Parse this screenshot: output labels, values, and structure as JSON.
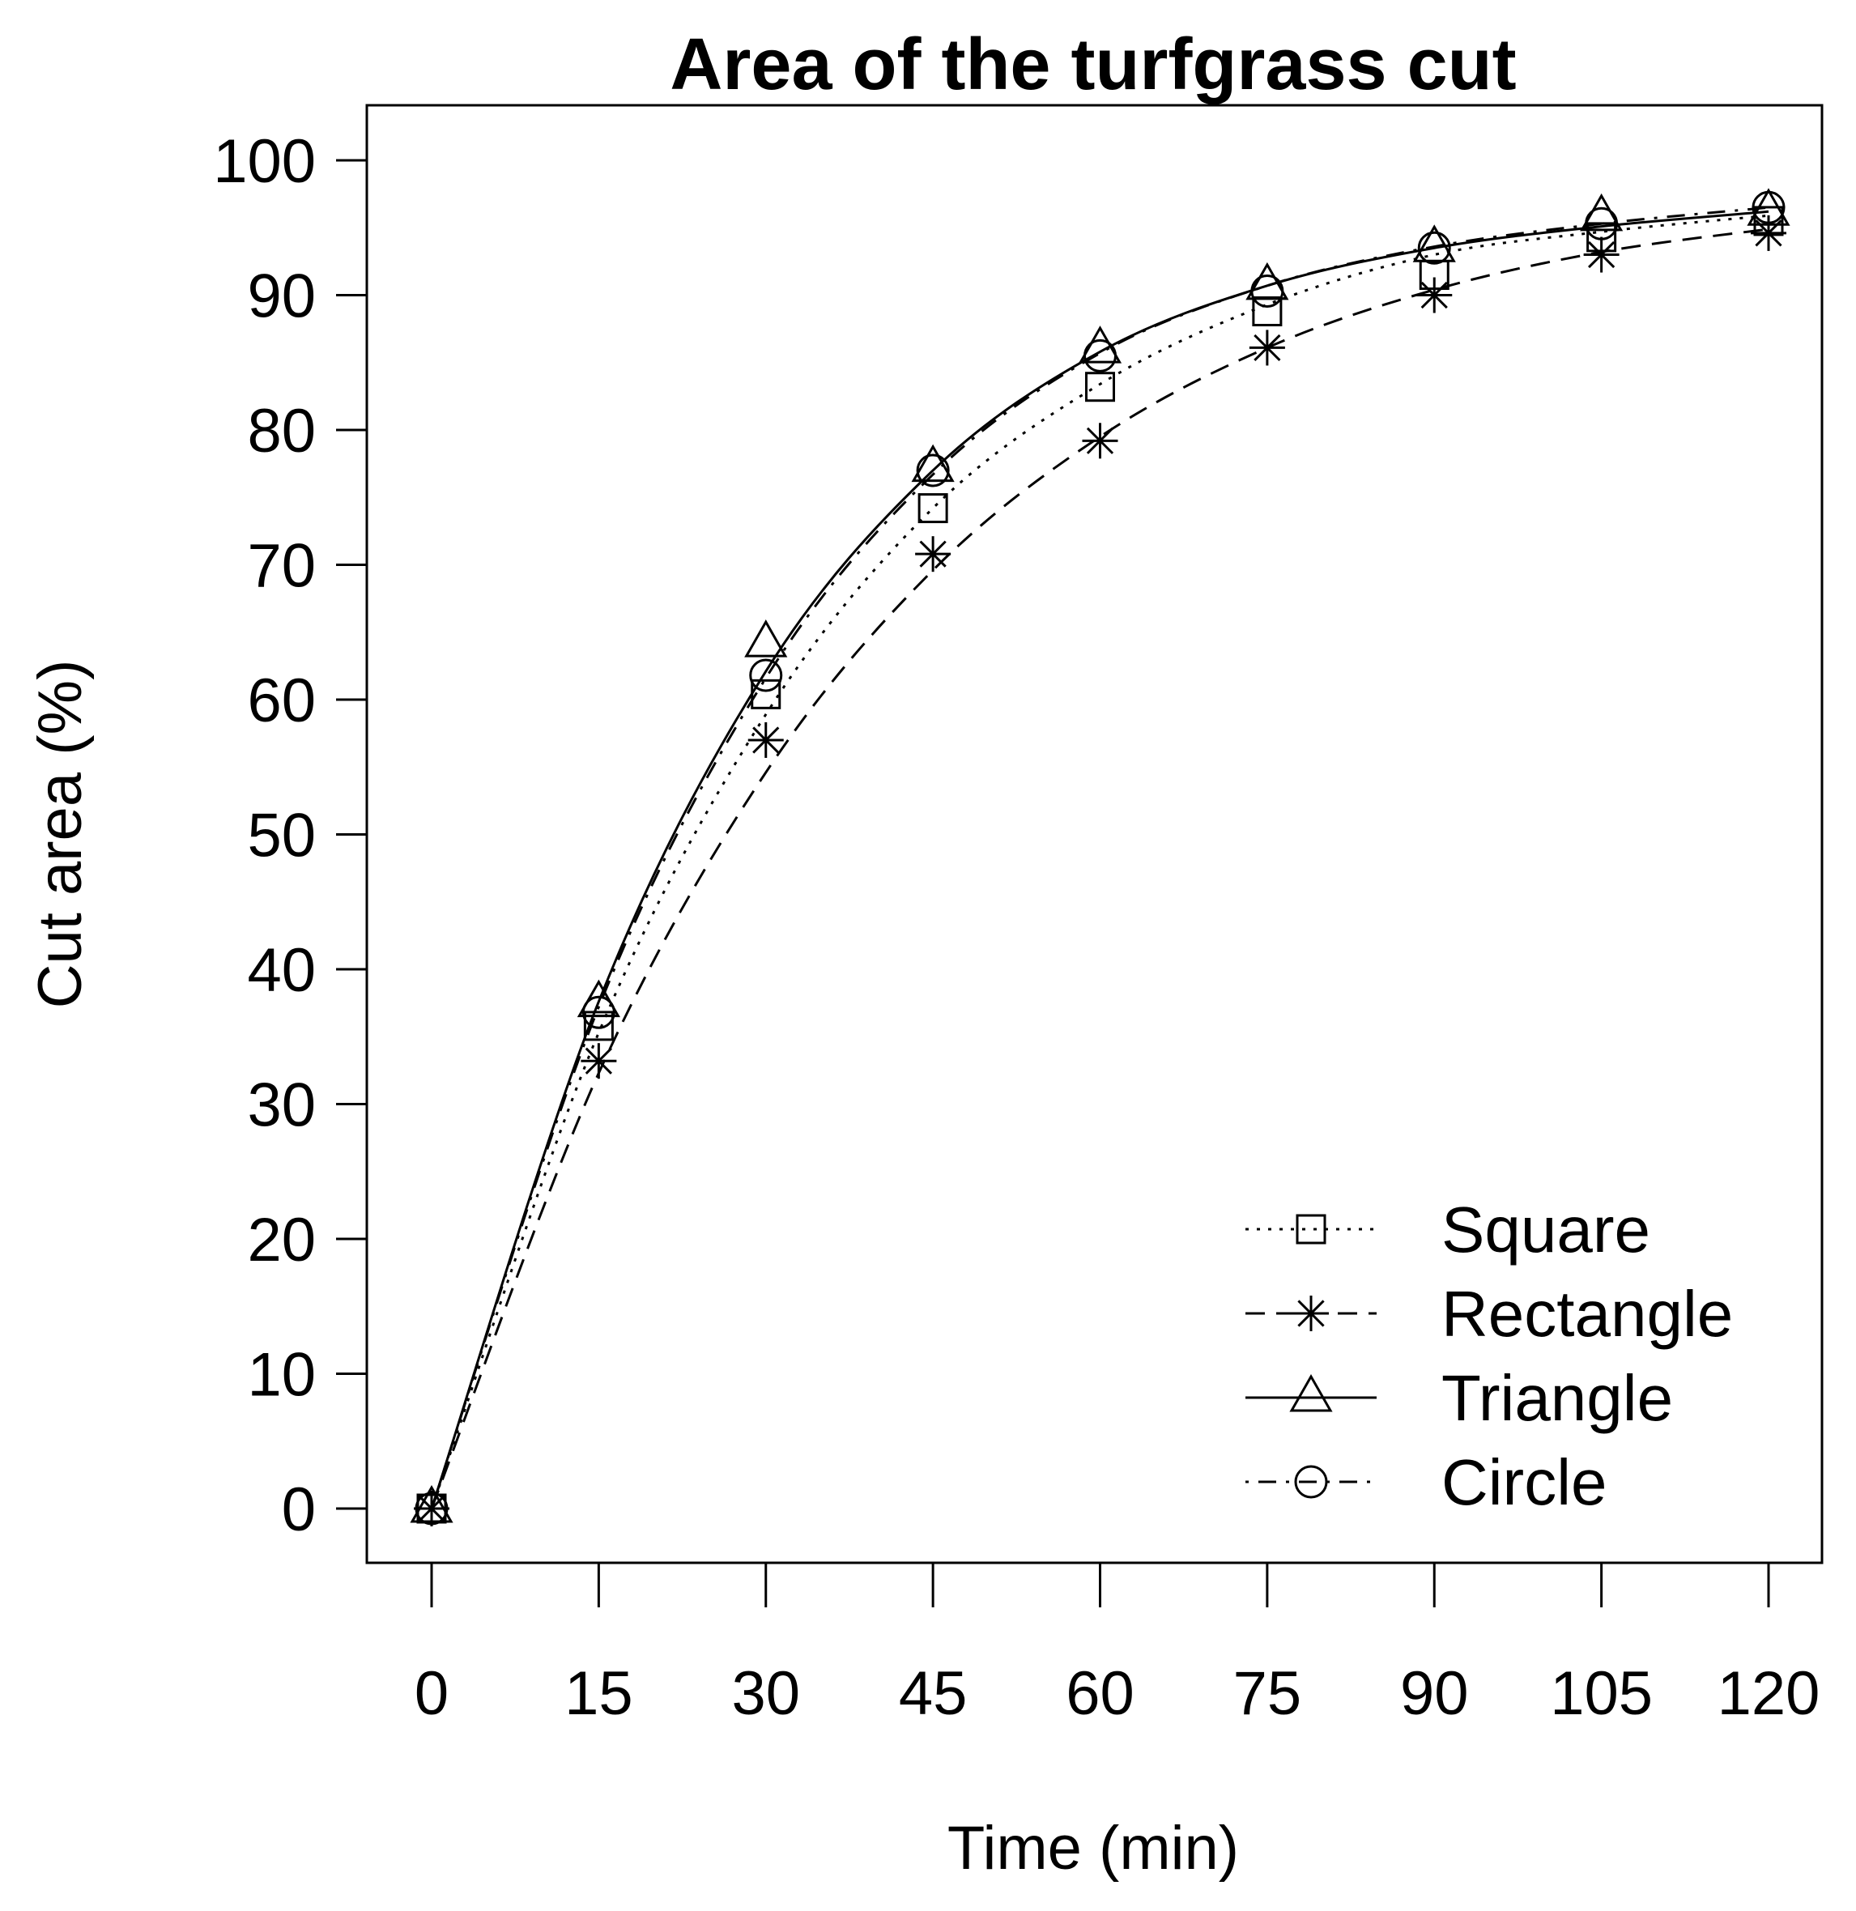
{
  "chart_data": {
    "type": "line",
    "title": "Area of the turfgrass cut",
    "xlabel": "Time (min)",
    "ylabel": "Cut area (%)",
    "x": [
      0,
      15,
      30,
      45,
      60,
      75,
      90,
      105,
      120
    ],
    "x_ticks": [
      "0",
      "15",
      "30",
      "45",
      "60",
      "75",
      "90",
      "105",
      "120"
    ],
    "y_ticks": [
      "0",
      "10",
      "20",
      "30",
      "40",
      "50",
      "60",
      "70",
      "80",
      "90",
      "100"
    ],
    "xlim": [
      -6,
      125
    ],
    "ylim": [
      -4,
      104
    ],
    "grid": false,
    "legend_position": "bottom-right",
    "series": [
      {
        "name": "Square",
        "marker": "square",
        "line_style": "dotted",
        "values": [
          0,
          35.8,
          60.4,
          74.2,
          83.2,
          88.8,
          91.5,
          94.3,
          95.5
        ],
        "fit": [
          0,
          35.3,
          58.9,
          74.2,
          83.4,
          89.3,
          93.0,
          94.7,
          95.9
        ]
      },
      {
        "name": "Rectangle",
        "marker": "asterisk",
        "line_style": "dashed",
        "values": [
          0,
          33.2,
          57.0,
          70.8,
          79.2,
          86.1,
          90.0,
          93.0,
          94.6
        ],
        "fit": [
          0,
          32.3,
          54.6,
          69.6,
          79.5,
          86.1,
          90.4,
          93.2,
          94.9
        ]
      },
      {
        "name": "Triangle",
        "marker": "triangle",
        "line_style": "solid",
        "values": [
          0,
          37.5,
          64.2,
          77.2,
          86.0,
          90.7,
          93.5,
          95.8,
          96.2
        ],
        "fit": [
          0,
          37.6,
          62.1,
          77.0,
          85.8,
          90.7,
          93.5,
          95.1,
          96.2
        ]
      },
      {
        "name": "Circle",
        "marker": "circle",
        "line_style": "dashdot",
        "values": [
          0,
          36.8,
          61.8,
          77.0,
          85.5,
          90.3,
          93.5,
          95.3,
          96.5
        ],
        "fit": [
          0,
          37.2,
          61.6,
          76.7,
          85.7,
          90.7,
          93.6,
          95.3,
          96.5
        ]
      }
    ]
  }
}
